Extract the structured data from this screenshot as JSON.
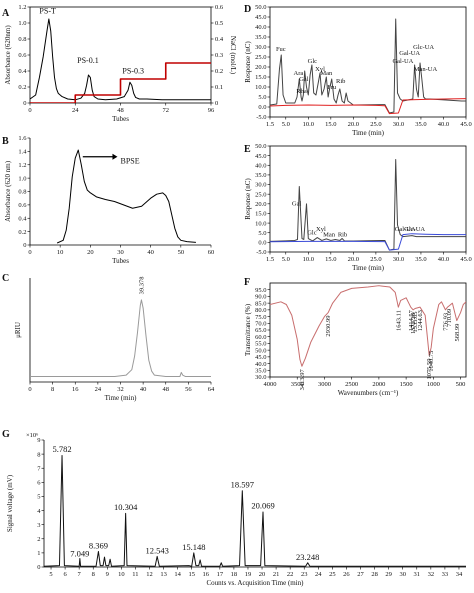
{
  "chart_data": [
    {
      "panel": "A",
      "type": "line",
      "xlabel": "Tubes",
      "ylabel": "Absorbance (620nm)",
      "y2label": "NaCl (mol/L)",
      "xlim": [
        0,
        96
      ],
      "ylim": [
        0,
        1.2
      ],
      "y2lim": [
        0,
        0.6
      ],
      "xticks": [
        "0",
        "24",
        "48",
        "72",
        "96"
      ],
      "yticks": [
        "0",
        "0.2",
        "0.4",
        "0.6",
        "0.8",
        "1.0",
        "1.2"
      ],
      "y2ticks": [
        "0",
        "0.1",
        "0.2",
        "0.3",
        "0.4",
        "0.5",
        "0.6"
      ],
      "series": [
        {
          "color": "#000000",
          "x": [
            0,
            3,
            5,
            7,
            9,
            10,
            11,
            12,
            13,
            14,
            15,
            17,
            20,
            24,
            27,
            29,
            30,
            31,
            32,
            33,
            34,
            36,
            40,
            46,
            50,
            52,
            53,
            54,
            55,
            56,
            58,
            62,
            70,
            80,
            90,
            96
          ],
          "values": [
            0.05,
            0.1,
            0.32,
            0.58,
            0.9,
            1.05,
            0.9,
            0.58,
            0.32,
            0.18,
            0.12,
            0.08,
            0.05,
            0.04,
            0.06,
            0.12,
            0.22,
            0.35,
            0.32,
            0.16,
            0.08,
            0.05,
            0.04,
            0.05,
            0.08,
            0.16,
            0.26,
            0.22,
            0.12,
            0.07,
            0.05,
            0.05,
            0.04,
            0.04,
            0.04,
            0.04
          ]
        },
        {
          "color": "#c00000",
          "x": [
            0,
            24,
            24,
            48,
            48,
            72,
            72,
            96
          ],
          "values": [
            0,
            0,
            0.1,
            0.1,
            0.3,
            0.3,
            0.5,
            0.5
          ]
        }
      ],
      "annotations": [
        {
          "text": "PS-T",
          "x": 5,
          "y": 1.12
        },
        {
          "text": "PS-0.1",
          "x": 25,
          "y": 0.5
        },
        {
          "text": "PS-0.3",
          "x": 49,
          "y": 0.37
        }
      ]
    },
    {
      "panel": "B",
      "type": "line",
      "xlabel": "Tubes",
      "ylabel": "Absorbance (620 nm)",
      "xlim": [
        0,
        60
      ],
      "ylim": [
        0,
        1.6
      ],
      "xticks": [
        "0",
        "10",
        "20",
        "30",
        "40",
        "50",
        "60"
      ],
      "yticks": [
        "0",
        "0.2",
        "0.4",
        "0.6",
        "0.8",
        "1.0",
        "1.2",
        "1.4",
        "1.6"
      ],
      "series": [
        {
          "color": "#000000",
          "x": [
            9,
            11,
            12,
            13,
            14,
            15,
            16,
            17,
            18,
            19,
            20,
            22,
            25,
            28,
            31,
            34,
            37,
            40,
            42,
            44,
            45,
            46,
            47,
            48,
            49,
            50,
            52,
            55
          ],
          "values": [
            0.03,
            0.07,
            0.22,
            0.55,
            1.02,
            1.3,
            1.42,
            1.2,
            0.95,
            0.82,
            0.78,
            0.72,
            0.68,
            0.65,
            0.6,
            0.55,
            0.58,
            0.7,
            0.76,
            0.78,
            0.74,
            0.65,
            0.45,
            0.25,
            0.12,
            0.07,
            0.05,
            0.04
          ]
        }
      ],
      "annotations": [
        {
          "text": "BPSE",
          "x": 30,
          "y": 1.22
        }
      ]
    },
    {
      "panel": "C",
      "type": "line",
      "xlabel": "Time (min)",
      "ylabel": "μRIU",
      "xlim": [
        0,
        64
      ],
      "xticks": [
        "0",
        "8",
        "16",
        "24",
        "32",
        "40",
        "48",
        "56",
        "64"
      ],
      "series": [
        {
          "color": "#9a9a9a",
          "x": [
            0,
            30,
            34,
            36,
            37,
            38,
            39,
            39.4,
            40,
            41,
            42,
            43,
            44,
            48,
            53,
            53.5,
            54,
            55,
            64
          ],
          "values": [
            0,
            0,
            0.01,
            0.05,
            0.15,
            0.32,
            0.52,
            0.56,
            0.5,
            0.3,
            0.12,
            0.04,
            0.01,
            0,
            0,
            0.03,
            0.01,
            0,
            0
          ]
        }
      ],
      "annotations": [
        {
          "text": "39.378",
          "x": 39.4,
          "y": 0.6
        }
      ]
    },
    {
      "panel": "D",
      "type": "line",
      "xlabel": "Time (min)",
      "ylabel": "Response (nC)",
      "xlim": [
        1.5,
        45
      ],
      "ylim": [
        -5,
        50
      ],
      "xticks": [
        "1.5",
        "5.0",
        "10.0",
        "15.0",
        "20.0",
        "25.0",
        "30.0",
        "35.0",
        "40.0",
        "45.0"
      ],
      "yticks": [
        "-5.0",
        "0.0",
        "5.0",
        "10.0",
        "15.0",
        "20.0",
        "25.0",
        "30.0",
        "35.0",
        "40.0",
        "45.0",
        "50.0"
      ],
      "series": [
        {
          "color": "#444444",
          "x": [
            1.5,
            3,
            3.6,
            4,
            4.4,
            5,
            7,
            7.5,
            8,
            8.4,
            8.6,
            8.9,
            9.2,
            9.6,
            10,
            10.4,
            10.8,
            11.2,
            11.7,
            12.2,
            12.6,
            13,
            13.5,
            14,
            14.4,
            14.8,
            15.2,
            15.7,
            16.2,
            16.6,
            17,
            17.5,
            18,
            18.4,
            18.8,
            20,
            27,
            28,
            29,
            29.4,
            29.8,
            30.4,
            31,
            33.2,
            33.6,
            34,
            34.4,
            34.8,
            35.2,
            35.6,
            36,
            37,
            44,
            45
          ],
          "values": [
            1,
            1.5,
            19,
            26,
            6,
            2,
            2,
            5,
            14,
            5,
            3,
            6,
            18,
            10,
            6,
            16,
            21,
            7,
            6,
            12,
            17,
            6,
            9,
            15,
            5,
            10,
            14,
            4,
            2,
            6,
            9,
            3,
            2,
            7,
            3,
            1,
            1.2,
            -3,
            -2.5,
            44,
            7,
            4,
            3,
            4,
            21,
            9,
            5,
            22,
            14,
            5,
            4,
            4,
            3,
            3
          ]
        },
        {
          "color": "#e02020",
          "x": [
            1.5,
            5,
            10,
            15,
            20,
            25,
            27,
            28,
            30,
            31,
            36,
            40,
            45
          ],
          "values": [
            0.5,
            0.8,
            1,
            0.8,
            1,
            0.8,
            0.6,
            -3.3,
            -3,
            3.5,
            3.8,
            4,
            4.2
          ]
        }
      ],
      "annotations": [
        {
          "text": "Fuc",
          "x": 3.9,
          "y": 28
        },
        {
          "text": "Ara",
          "x": 7.8,
          "y": 16
        },
        {
          "text": "Rha",
          "x": 8.5,
          "y": 7
        },
        {
          "text": "Gal",
          "x": 9.0,
          "y": 13
        },
        {
          "text": "Glc",
          "x": 10.9,
          "y": 22
        },
        {
          "text": "Xyl",
          "x": 12.6,
          "y": 18
        },
        {
          "text": "Man",
          "x": 14.0,
          "y": 16
        },
        {
          "text": "Fru",
          "x": 15.2,
          "y": 9
        },
        {
          "text": "Rib",
          "x": 17.2,
          "y": 12
        },
        {
          "text": "Gal-UA",
          "x": 31.0,
          "y": 22
        },
        {
          "text": "Gal-UA",
          "x": 32.5,
          "y": 26
        },
        {
          "text": "Glc-UA",
          "x": 35.6,
          "y": 29
        },
        {
          "text": "Man-UA",
          "x": 36.0,
          "y": 18
        }
      ]
    },
    {
      "panel": "E",
      "type": "line",
      "xlabel": "Time (min)",
      "ylabel": "Response (nC)",
      "xlim": [
        1.5,
        45
      ],
      "ylim": [
        -5,
        50
      ],
      "xticks": [
        "1.5",
        "5.0",
        "10.0",
        "15.0",
        "20.0",
        "25.0",
        "30.0",
        "35.0",
        "40.0",
        "45.0"
      ],
      "yticks": [
        "-5.0",
        "0.0",
        "5.0",
        "10.0",
        "15.0",
        "20.0",
        "25.0",
        "30.0",
        "35.0",
        "40.0",
        "45.0",
        "50.0"
      ],
      "series": [
        {
          "color": "#444444",
          "x": [
            1.5,
            5,
            7,
            7.6,
            8,
            8.6,
            9,
            9.6,
            10,
            10.6,
            11,
            12,
            13,
            14,
            15,
            16,
            17,
            17.5,
            18,
            20,
            27,
            28,
            29,
            29.4,
            29.8,
            30.4,
            31,
            33,
            34,
            35,
            36,
            40,
            45
          ],
          "values": [
            0.5,
            0.8,
            1,
            1.5,
            29,
            2,
            1.5,
            20,
            2,
            1.2,
            0.8,
            2.5,
            1,
            1.8,
            1,
            1.5,
            1,
            2,
            0.8,
            0.7,
            1,
            -4,
            -3.5,
            43,
            9,
            4,
            3,
            3.5,
            3,
            3,
            3,
            3,
            3
          ]
        },
        {
          "color": "#3a4ad8",
          "x": [
            1.5,
            10,
            20,
            27,
            28,
            30,
            31,
            33,
            36,
            40,
            45
          ],
          "values": [
            0.3,
            0.5,
            0.5,
            0.4,
            -4,
            -3.5,
            4,
            4.5,
            4.2,
            4,
            4
          ]
        }
      ],
      "annotations": [
        {
          "text": "Gal",
          "x": 7.4,
          "y": 19
        },
        {
          "text": "Glc",
          "x": 10.8,
          "y": 4
        },
        {
          "text": "Xyl",
          "x": 12.8,
          "y": 6
        },
        {
          "text": "Man",
          "x": 14.6,
          "y": 3
        },
        {
          "text": "Rib",
          "x": 17.6,
          "y": 3
        },
        {
          "text": "Gal-UA",
          "x": 31.5,
          "y": 6
        },
        {
          "text": "Glc-UA",
          "x": 33.6,
          "y": 6
        }
      ]
    },
    {
      "panel": "F",
      "type": "line",
      "xlabel": "Wavenumbers (cm⁻¹)",
      "ylabel": "Transmittance (%)",
      "xlim": [
        4000,
        400
      ],
      "ylim": [
        30,
        100
      ],
      "xticks": [
        "4000",
        "3500",
        "3000",
        "2500",
        "2000",
        "1500",
        "1000",
        "500"
      ],
      "yticks": [
        "30.0",
        "35.0",
        "40.0",
        "45.0",
        "50.0",
        "55.0",
        "60.0",
        "65.0",
        "70.0",
        "75.0",
        "80.0",
        "85.0",
        "90.0",
        "95.0"
      ],
      "series": [
        {
          "color": "#c86e6e",
          "x": [
            4000,
            3800,
            3700,
            3600,
            3500,
            3450,
            3414,
            3350,
            3250,
            3100,
            3000,
            2931,
            2850,
            2700,
            2500,
            2200,
            2000,
            1800,
            1700,
            1643,
            1600,
            1500,
            1414,
            1372,
            1335,
            1244,
            1150,
            1076,
            1040,
            1000,
            900,
            850,
            777,
            740,
            710,
            650,
            569,
            500,
            450,
            400
          ],
          "values": [
            84,
            86,
            84,
            76,
            58,
            43,
            38,
            44,
            56,
            68,
            75,
            78,
            85,
            93,
            96,
            97,
            98,
            97,
            93,
            82,
            87,
            89,
            82,
            80,
            81,
            82,
            76,
            46,
            52,
            66,
            84,
            86,
            80,
            82,
            83,
            85,
            72,
            78,
            84,
            86
          ]
        }
      ],
      "annotations": [
        {
          "text": "3413.97",
          "x": 3414
        },
        {
          "text": "2930.99",
          "x": 2931
        },
        {
          "text": "1643.11",
          "x": 1643
        },
        {
          "text": "1414.57",
          "x": 1414
        },
        {
          "text": "1372.28",
          "x": 1372
        },
        {
          "text": "1335.65",
          "x": 1336
        },
        {
          "text": "1244.63",
          "x": 1245
        },
        {
          "text": "1075.59",
          "x": 1076
        },
        {
          "text": "1040.75",
          "x": 1041
        },
        {
          "text": "776.93",
          "x": 777
        },
        {
          "text": "710.09",
          "x": 710
        },
        {
          "text": "568.99",
          "x": 569
        }
      ]
    },
    {
      "panel": "G",
      "type": "line",
      "xlabel": "Counts vs. Acquisition Time (min)",
      "ylabel": "Signal voltage (mV)",
      "yexp": "×10⁶",
      "xlim": [
        4.5,
        34.5
      ],
      "ylim": [
        0,
        9
      ],
      "xticks": [
        "5",
        "6",
        "7",
        "8",
        "9",
        "10",
        "11",
        "12",
        "13",
        "14",
        "15",
        "16",
        "17",
        "18",
        "19",
        "20",
        "21",
        "22",
        "23",
        "24",
        "25",
        "26",
        "27",
        "28",
        "29",
        "30",
        "31",
        "32",
        "33",
        "34"
      ],
      "yticks": [
        "0",
        "1",
        "2",
        "3",
        "4",
        "5",
        "6",
        "7",
        "8",
        "9"
      ],
      "series": [
        {
          "color": "#111111",
          "x": [
            4.5,
            5.6,
            5.782,
            5.95,
            7.0,
            7.049,
            7.1,
            8.2,
            8.369,
            8.5,
            8.7,
            8.8,
            8.9,
            9.1,
            9.2,
            9.3,
            10.2,
            10.304,
            10.4,
            12.4,
            12.543,
            12.7,
            14.8,
            15.0,
            15.148,
            15.3,
            15.5,
            15.6,
            15.7,
            17.0,
            17.1,
            17.2,
            18.4,
            18.597,
            18.8,
            19.9,
            20.069,
            20.2,
            23.1,
            23.248,
            23.4,
            26,
            34.5
          ],
          "values": [
            0.05,
            0.1,
            7.9,
            0.1,
            0.05,
            0.6,
            0.05,
            0.05,
            1.1,
            0.1,
            0.1,
            0.7,
            0.1,
            0.1,
            0.55,
            0.05,
            0.1,
            3.8,
            0.1,
            0.05,
            0.75,
            0.05,
            0.1,
            0.05,
            1.0,
            0.1,
            0.1,
            0.5,
            0.05,
            0.05,
            0.3,
            0.05,
            0.1,
            5.4,
            0.1,
            0.1,
            3.9,
            0.1,
            0.05,
            0.3,
            0.05,
            0.05,
            0.05
          ]
        }
      ],
      "annotations": [
        {
          "text": "5.782",
          "x": 5.782,
          "y": 8.15
        },
        {
          "text": "7.049",
          "x": 7.049,
          "y": 0.75
        },
        {
          "text": "8.369",
          "x": 8.369,
          "y": 1.3
        },
        {
          "text": "10.304",
          "x": 10.304,
          "y": 4.05
        },
        {
          "text": "12.543",
          "x": 12.543,
          "y": 0.95
        },
        {
          "text": "15.148",
          "x": 15.148,
          "y": 1.2
        },
        {
          "text": "18.597",
          "x": 18.597,
          "y": 5.65
        },
        {
          "text": "20.069",
          "x": 20.069,
          "y": 4.15
        },
        {
          "text": "23.248",
          "x": 23.248,
          "y": 0.5
        }
      ]
    }
  ]
}
